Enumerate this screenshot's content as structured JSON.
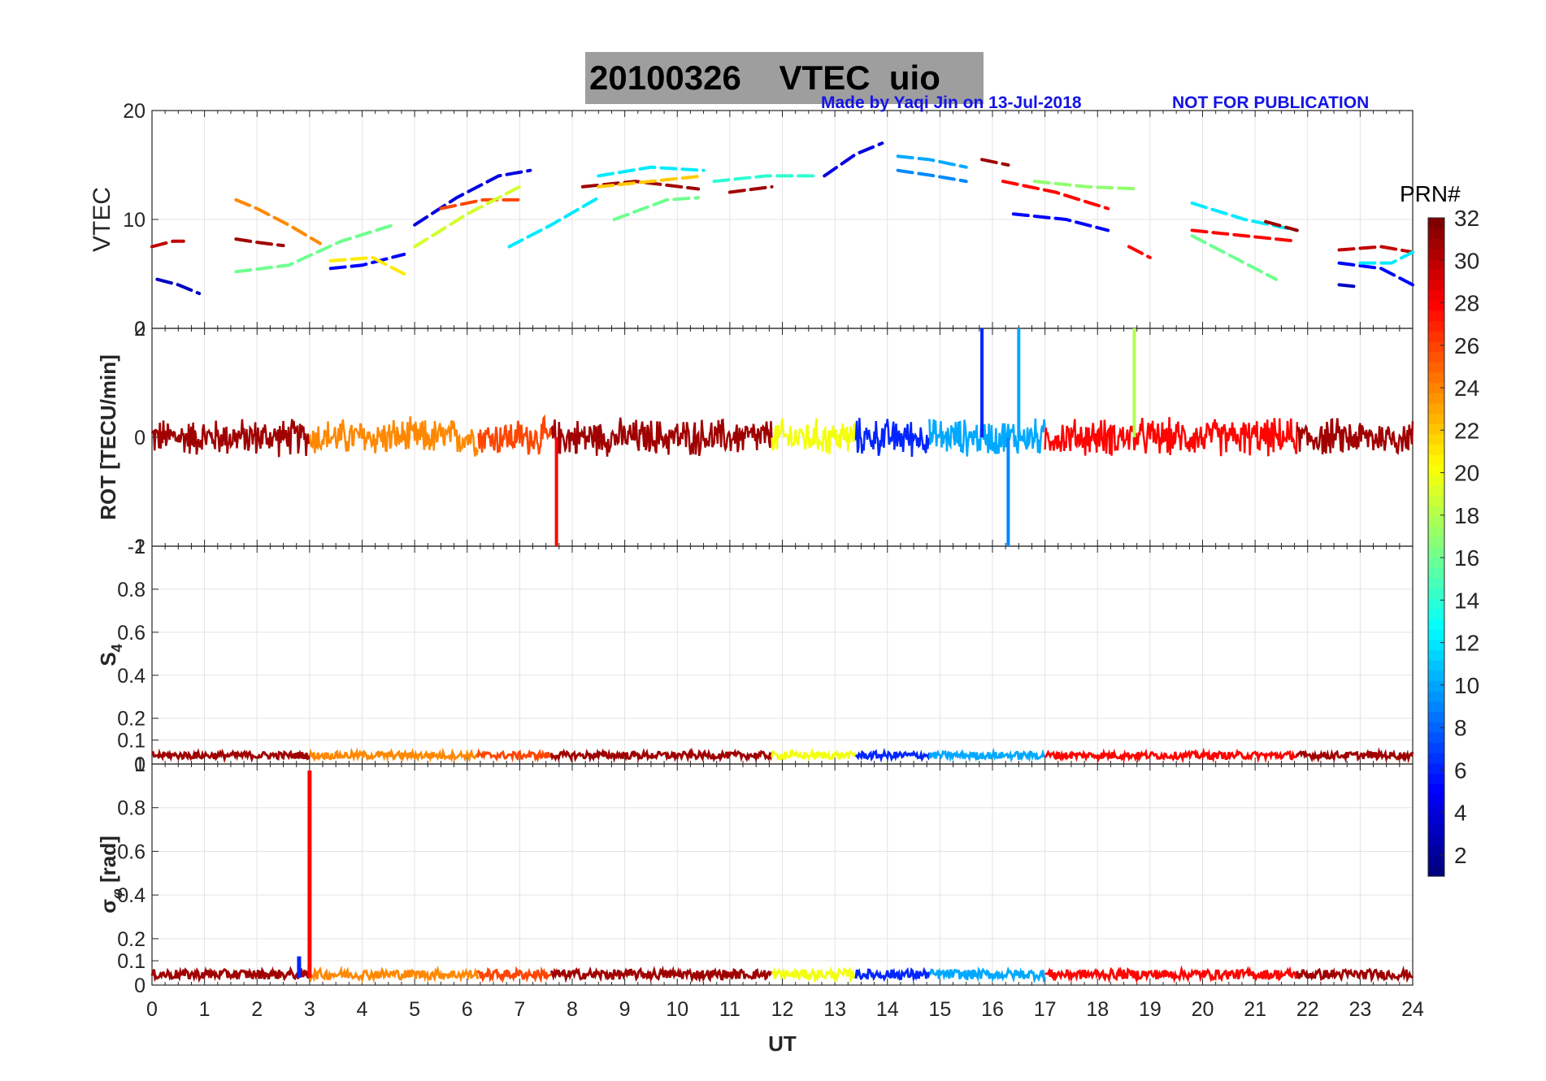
{
  "header": {
    "title": "20100326    VTEC  uio",
    "credit": "Made by Yaqi Jin on 13-Jul-2018",
    "notice": "NOT FOR PUBLICATION"
  },
  "colorbar": {
    "label": "PRN#",
    "ticks": [
      "2",
      "4",
      "6",
      "8",
      "10",
      "12",
      "14",
      "16",
      "18",
      "20",
      "22",
      "24",
      "26",
      "28",
      "30",
      "32"
    ],
    "colormap": "jet",
    "range": [
      1,
      32
    ]
  },
  "chart_data": [
    {
      "type": "line",
      "panel": "vtec",
      "ylabel": "VTEC",
      "xlabel": "",
      "xlim": [
        0,
        24
      ],
      "ylim": [
        0,
        20
      ],
      "yticks": [
        "0",
        "10",
        "20"
      ],
      "series": [
        {
          "prn": 3,
          "x": [
            0.1,
            0.5,
            0.9
          ],
          "y": [
            4.5,
            4,
            3.2
          ]
        },
        {
          "prn": 30,
          "x": [
            0.0,
            0.4,
            0.6
          ],
          "y": [
            7.5,
            8,
            8
          ]
        },
        {
          "prn": 31,
          "x": [
            1.6,
            2.0,
            2.5
          ],
          "y": [
            8.2,
            7.9,
            7.6
          ]
        },
        {
          "prn": 24,
          "x": [
            1.6,
            2.0,
            2.6,
            3.2
          ],
          "y": [
            11.8,
            11,
            9.5,
            7.8
          ]
        },
        {
          "prn": 16,
          "x": [
            1.6,
            2.6,
            3.6,
            4.6
          ],
          "y": [
            5.2,
            5.8,
            8,
            9.5
          ]
        },
        {
          "prn": 5,
          "x": [
            3.4,
            4.0,
            4.8
          ],
          "y": [
            5.5,
            5.8,
            6.8
          ]
        },
        {
          "prn": 21,
          "x": [
            3.4,
            4.2,
            4.8
          ],
          "y": [
            6.2,
            6.5,
            5
          ]
        },
        {
          "prn": 4,
          "x": [
            5.0,
            5.8,
            6.6,
            7.2
          ],
          "y": [
            9.5,
            12,
            14,
            14.5
          ]
        },
        {
          "prn": 26,
          "x": [
            5.5,
            6.3,
            7.0
          ],
          "y": [
            11,
            11.8,
            11.8
          ]
        },
        {
          "prn": 19,
          "x": [
            5.0,
            6.0,
            7.0
          ],
          "y": [
            7.5,
            10.5,
            13
          ]
        },
        {
          "prn": 12,
          "x": [
            6.8,
            7.6,
            8.5
          ],
          "y": [
            7.5,
            9.5,
            12
          ]
        },
        {
          "prn": 31,
          "x": [
            8.2,
            9.2,
            10.4
          ],
          "y": [
            13,
            13.5,
            12.8
          ]
        },
        {
          "prn": 22,
          "x": [
            8.5,
            9.5,
            10.5
          ],
          "y": [
            13,
            13.5,
            14
          ]
        },
        {
          "prn": 12,
          "x": [
            8.5,
            9.5,
            10.5
          ],
          "y": [
            14,
            14.8,
            14.5
          ]
        },
        {
          "prn": 16,
          "x": [
            8.8,
            9.8,
            10.4
          ],
          "y": [
            10,
            11.8,
            12
          ]
        },
        {
          "prn": 31,
          "x": [
            11.0,
            11.8
          ],
          "y": [
            12.5,
            13
          ]
        },
        {
          "prn": 14,
          "x": [
            10.7,
            11.7,
            12.7
          ],
          "y": [
            13.5,
            14,
            14
          ]
        },
        {
          "prn": 4,
          "x": [
            12.8,
            13.4,
            13.9
          ],
          "y": [
            14,
            16,
            17
          ]
        },
        {
          "prn": 10,
          "x": [
            14.2,
            14.8,
            15.5
          ],
          "y": [
            15.8,
            15.5,
            14.8
          ]
        },
        {
          "prn": 9,
          "x": [
            14.2,
            14.9,
            15.5
          ],
          "y": [
            14.5,
            14,
            13.5
          ]
        },
        {
          "prn": 31,
          "x": [
            15.8,
            16.3
          ],
          "y": [
            15.5,
            15
          ]
        },
        {
          "prn": 28,
          "x": [
            16.2,
            17.2,
            18.2
          ],
          "y": [
            13.5,
            12.5,
            11
          ]
        },
        {
          "prn": 5,
          "x": [
            16.4,
            17.4,
            18.2
          ],
          "y": [
            10.5,
            10,
            9
          ]
        },
        {
          "prn": 17,
          "x": [
            16.8,
            17.8,
            18.8
          ],
          "y": [
            13.5,
            13,
            12.8
          ]
        },
        {
          "prn": 28,
          "x": [
            18.6,
            19.0
          ],
          "y": [
            7.5,
            6.5
          ]
        },
        {
          "prn": 12,
          "x": [
            19.8,
            20.8,
            21.8
          ],
          "y": [
            11.5,
            10,
            9
          ]
        },
        {
          "prn": 28,
          "x": [
            19.8,
            20.8,
            21.8
          ],
          "y": [
            9,
            8.5,
            8
          ]
        },
        {
          "prn": 16,
          "x": [
            19.8,
            20.6,
            21.4
          ],
          "y": [
            8.5,
            6.5,
            4.5
          ]
        },
        {
          "prn": 31,
          "x": [
            21.2,
            21.8
          ],
          "y": [
            9.8,
            9
          ]
        },
        {
          "prn": 30,
          "x": [
            22.6,
            23.4,
            24.0
          ],
          "y": [
            7.2,
            7.5,
            7
          ]
        },
        {
          "prn": 5,
          "x": [
            22.6,
            23.4,
            24.0
          ],
          "y": [
            6,
            5.5,
            4
          ]
        },
        {
          "prn": 12,
          "x": [
            23.0,
            23.6,
            24.0
          ],
          "y": [
            6,
            6,
            7
          ]
        },
        {
          "prn": 3,
          "x": [
            22.6,
            23.0
          ],
          "y": [
            4,
            3.8
          ]
        }
      ]
    },
    {
      "type": "line",
      "panel": "rot",
      "ylabel": "ROT [TECU/min]",
      "xlabel": "",
      "xlim": [
        0,
        24
      ],
      "ylim": [
        -2,
        2
      ],
      "yticks": [
        "-2",
        "0",
        "2"
      ],
      "segments": [
        {
          "prn": 31,
          "x0": 0.0,
          "x1": 3.0
        },
        {
          "prn": 24,
          "x0": 3.0,
          "x1": 6.2
        },
        {
          "prn": 26,
          "x0": 6.2,
          "x1": 7.6
        },
        {
          "prn": 31,
          "x0": 7.6,
          "x1": 11.8
        },
        {
          "prn": 20,
          "x0": 11.8,
          "x1": 13.4
        },
        {
          "prn": 6,
          "x0": 13.4,
          "x1": 14.8
        },
        {
          "prn": 10,
          "x0": 14.8,
          "x1": 17.0
        },
        {
          "prn": 28,
          "x0": 17.0,
          "x1": 21.8
        },
        {
          "prn": 31,
          "x0": 21.8,
          "x1": 24.0
        }
      ],
      "amplitude": 0.5,
      "spikes": [
        {
          "prn": 28,
          "x": 7.7,
          "y": -2
        },
        {
          "prn": 6,
          "x": 15.8,
          "y": 2
        },
        {
          "prn": 10,
          "x": 16.5,
          "y": 2
        },
        {
          "prn": 9,
          "x": 16.3,
          "y": -2
        },
        {
          "prn": 18,
          "x": 18.7,
          "y": 2
        }
      ]
    },
    {
      "type": "line",
      "panel": "s4",
      "ylabel": "S4",
      "xlabel": "",
      "xlim": [
        0,
        24
      ],
      "ylim": [
        0,
        1
      ],
      "yticks": [
        "0",
        "0.1",
        "0.2",
        "0.4",
        "0.6",
        "0.8",
        "1"
      ],
      "baseline": 0.03,
      "amplitude": 0.03
    },
    {
      "type": "line",
      "panel": "sigma_phi",
      "ylabel": "σφ [rad]",
      "xlabel": "UT",
      "xlim": [
        0,
        24
      ],
      "ylim": [
        0,
        1
      ],
      "yticks": [
        "0",
        "0.1",
        "0.2",
        "0.4",
        "0.6",
        "0.8",
        "1"
      ],
      "xticks": [
        "0",
        "1",
        "2",
        "3",
        "4",
        "5",
        "6",
        "7",
        "8",
        "9",
        "10",
        "11",
        "12",
        "13",
        "14",
        "15",
        "16",
        "17",
        "18",
        "19",
        "20",
        "21",
        "22",
        "23",
        "24"
      ],
      "baseline": 0.04,
      "amplitude": 0.04,
      "spikes": [
        {
          "prn": 28,
          "x": 3.0,
          "y": 0.97
        },
        {
          "prn": 6,
          "x": 2.8,
          "y": 0.12
        }
      ]
    }
  ]
}
